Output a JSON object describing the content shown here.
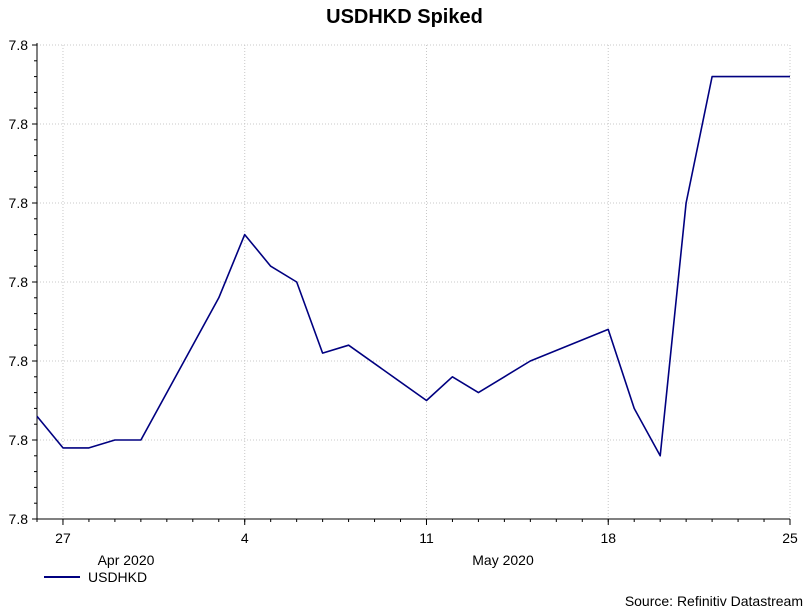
{
  "chart_data": {
    "type": "line",
    "title": "USDHKD Spiked",
    "source": "Source: Refinitiv Datastream",
    "y_tick_labels": [
      "7.8",
      "7.8",
      "7.8",
      "7.8",
      "7.8",
      "7.8",
      "7.8"
    ],
    "ylim": [
      7.7495,
      7.7525
    ],
    "x_tick_labels": [
      "27",
      "4",
      "11",
      "18",
      "25"
    ],
    "x_group_labels": [
      "Apr 2020",
      "May 2020"
    ],
    "grid": true,
    "legend_position": "bottom-left",
    "series": [
      {
        "name": "USDHKD",
        "color": "#000080",
        "points": [
          {
            "x": "2020-04-26",
            "y": 7.75015
          },
          {
            "x": "2020-04-27",
            "y": 7.74995
          },
          {
            "x": "2020-04-28",
            "y": 7.74995
          },
          {
            "x": "2020-04-29",
            "y": 7.75
          },
          {
            "x": "2020-04-30",
            "y": 7.75
          },
          {
            "x": "2020-05-03",
            "y": 7.7509
          },
          {
            "x": "2020-05-04",
            "y": 7.7513
          },
          {
            "x": "2020-05-05",
            "y": 7.7511
          },
          {
            "x": "2020-05-06",
            "y": 7.751
          },
          {
            "x": "2020-05-07",
            "y": 7.75055
          },
          {
            "x": "2020-05-08",
            "y": 7.7506
          },
          {
            "x": "2020-05-11",
            "y": 7.75025
          },
          {
            "x": "2020-05-12",
            "y": 7.7504
          },
          {
            "x": "2020-05-13",
            "y": 7.7503
          },
          {
            "x": "2020-05-14",
            "y": 7.7504
          },
          {
            "x": "2020-05-15",
            "y": 7.7505
          },
          {
            "x": "2020-05-18",
            "y": 7.7507
          },
          {
            "x": "2020-05-19",
            "y": 7.7502
          },
          {
            "x": "2020-05-20",
            "y": 7.7499
          },
          {
            "x": "2020-05-21",
            "y": 7.7515
          },
          {
            "x": "2020-05-22",
            "y": 7.7523
          },
          {
            "x": "2020-05-25",
            "y": 7.7523
          }
        ]
      }
    ]
  }
}
